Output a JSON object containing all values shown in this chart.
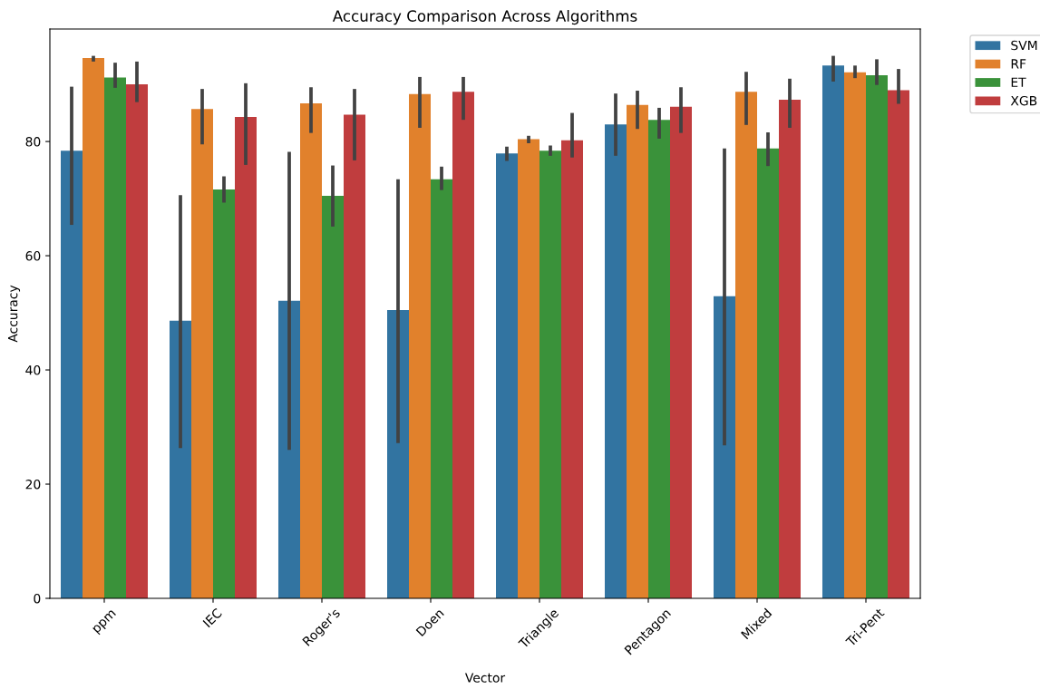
{
  "chart_data": {
    "type": "bar",
    "title": "Accuracy Comparison Across Algorithms",
    "xlabel": "Vector",
    "ylabel": "Accuracy",
    "categories": [
      "ppm",
      "IEC",
      "Roger's",
      "Doen",
      "Triangle",
      "Pentagon",
      "Mixed",
      "Tri-Pent"
    ],
    "series": [
      {
        "name": "SVM",
        "color": "#3274a1",
        "values": [
          78.4,
          48.6,
          52.1,
          50.5,
          77.9,
          83.0,
          52.9,
          93.3
        ],
        "errors": [
          [
            65.4,
            89.6
          ],
          [
            26.3,
            70.6
          ],
          [
            26.0,
            78.2
          ],
          [
            27.2,
            73.4
          ],
          [
            76.6,
            79.1
          ],
          [
            77.5,
            88.4
          ],
          [
            26.8,
            78.8
          ],
          [
            90.5,
            95.0
          ]
        ]
      },
      {
        "name": "RF",
        "color": "#e1812c",
        "values": [
          94.6,
          85.7,
          86.7,
          88.3,
          80.4,
          86.4,
          88.7,
          92.1
        ],
        "errors": [
          [
            94.0,
            95.0
          ],
          [
            79.5,
            89.2
          ],
          [
            81.5,
            89.5
          ],
          [
            82.4,
            91.3
          ],
          [
            79.7,
            81.0
          ],
          [
            82.2,
            88.9
          ],
          [
            82.9,
            92.2
          ],
          [
            91.1,
            93.3
          ]
        ]
      },
      {
        "name": "ET",
        "color": "#3a923a",
        "values": [
          91.2,
          71.6,
          70.5,
          73.4,
          78.4,
          83.8,
          78.8,
          91.6
        ],
        "errors": [
          [
            89.4,
            93.8
          ],
          [
            69.3,
            73.9
          ],
          [
            65.1,
            75.8
          ],
          [
            71.5,
            75.6
          ],
          [
            77.5,
            79.3
          ],
          [
            80.5,
            85.9
          ],
          [
            75.7,
            81.6
          ],
          [
            89.9,
            94.4
          ]
        ]
      },
      {
        "name": "XGB",
        "color": "#c03d3e",
        "values": [
          90.0,
          84.3,
          84.7,
          88.7,
          80.2,
          86.1,
          87.3,
          89.0
        ],
        "errors": [
          [
            86.9,
            94.0
          ],
          [
            75.9,
            90.2
          ],
          [
            76.7,
            89.2
          ],
          [
            83.8,
            91.3
          ],
          [
            77.2,
            85.0
          ],
          [
            81.5,
            89.5
          ],
          [
            82.4,
            91.0
          ],
          [
            86.6,
            92.7
          ]
        ]
      }
    ],
    "ylim": [
      0,
      99.7
    ],
    "yticks": [
      0,
      20,
      40,
      60,
      80
    ],
    "grid": false,
    "legend": "top right"
  }
}
